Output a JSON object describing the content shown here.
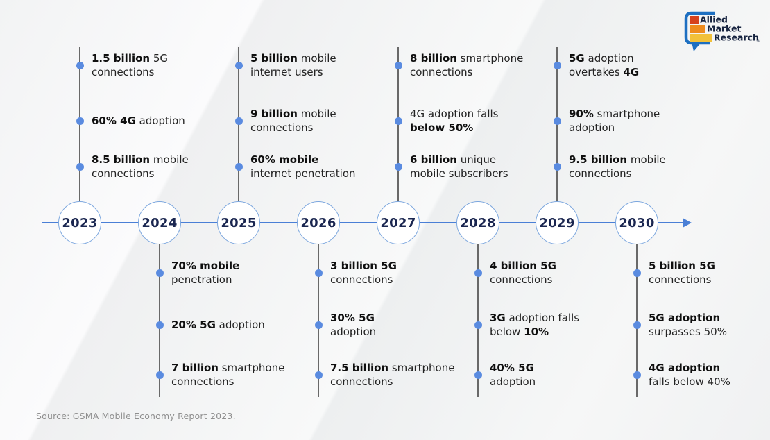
{
  "page": {
    "source_note": "Source: GSMA Mobile Economy Report 2023."
  },
  "logo": {
    "name": "Allied Market Research",
    "lines": [
      "Allied",
      "Market",
      "Research"
    ],
    "registered_mark": "®",
    "colors": {
      "bubble": "#1d6fc1",
      "bar_allied": "#d6411d",
      "bar_market": "#ee8b1e",
      "bar_research": "#f2c13a",
      "text": "#16233f"
    }
  },
  "colors": {
    "axis_blue": "#4a7fd6",
    "dot_blue": "#5a8be0",
    "circle_border_blue": "#7ba6de",
    "year_text_navy": "#1a2650",
    "connector_gray": "#696969",
    "background": "#f1f2f3"
  },
  "timeline": {
    "years": [
      {
        "label": "2023",
        "side": "top",
        "items": [
          [
            [
              {
                "t": "1.5 billion",
                "b": 1
              },
              {
                "t": " 5G",
                "b": 0
              }
            ],
            [
              {
                "t": "connections",
                "b": 0
              }
            ]
          ],
          [
            [
              {
                "t": "60% 4G",
                "b": 1
              },
              {
                "t": " adoption",
                "b": 0
              }
            ]
          ],
          [
            [
              {
                "t": "8.5 billion",
                "b": 1
              },
              {
                "t": " mobile",
                "b": 0
              }
            ],
            [
              {
                "t": "connections",
                "b": 0
              }
            ]
          ]
        ]
      },
      {
        "label": "2024",
        "side": "bottom",
        "items": [
          [
            [
              {
                "t": "70% mobile",
                "b": 1
              }
            ],
            [
              {
                "t": "penetration",
                "b": 0
              }
            ]
          ],
          [
            [
              {
                "t": "20% 5G",
                "b": 1
              },
              {
                "t": " adoption",
                "b": 0
              }
            ]
          ],
          [
            [
              {
                "t": "7 billion",
                "b": 1
              },
              {
                "t": " smartphone",
                "b": 0
              }
            ],
            [
              {
                "t": "connections",
                "b": 0
              }
            ]
          ]
        ]
      },
      {
        "label": "2025",
        "side": "top",
        "items": [
          [
            [
              {
                "t": "5 billion",
                "b": 1
              },
              {
                "t": " mobile",
                "b": 0
              }
            ],
            [
              {
                "t": "internet users",
                "b": 0
              }
            ]
          ],
          [
            [
              {
                "t": "9 billion",
                "b": 1
              },
              {
                "t": " mobile",
                "b": 0
              }
            ],
            [
              {
                "t": "connections",
                "b": 0
              }
            ]
          ],
          [
            [
              {
                "t": "60% mobile",
                "b": 1
              }
            ],
            [
              {
                "t": "internet penetration",
                "b": 0
              }
            ]
          ]
        ]
      },
      {
        "label": "2026",
        "side": "bottom",
        "items": [
          [
            [
              {
                "t": "3 billion 5G",
                "b": 1
              }
            ],
            [
              {
                "t": "connections",
                "b": 0
              }
            ]
          ],
          [
            [
              {
                "t": "30% 5G",
                "b": 1
              }
            ],
            [
              {
                "t": "adoption",
                "b": 0
              }
            ]
          ],
          [
            [
              {
                "t": "7.5 billion",
                "b": 1
              },
              {
                "t": " smartphone",
                "b": 0
              }
            ],
            [
              {
                "t": "connections",
                "b": 0
              }
            ]
          ]
        ]
      },
      {
        "label": "2027",
        "side": "top",
        "items": [
          [
            [
              {
                "t": "8 billion",
                "b": 1
              },
              {
                "t": " smartphone",
                "b": 0
              }
            ],
            [
              {
                "t": "connections",
                "b": 0
              }
            ]
          ],
          [
            [
              {
                "t": "4G adoption falls",
                "b": 0
              }
            ],
            [
              {
                "t": "below 50%",
                "b": 1
              }
            ]
          ],
          [
            [
              {
                "t": "6 billion",
                "b": 1
              },
              {
                "t": " unique",
                "b": 0
              }
            ],
            [
              {
                "t": "mobile subscribers",
                "b": 0
              }
            ]
          ]
        ]
      },
      {
        "label": "2028",
        "side": "bottom",
        "items": [
          [
            [
              {
                "t": "4 billion 5G",
                "b": 1
              }
            ],
            [
              {
                "t": "connections",
                "b": 0
              }
            ]
          ],
          [
            [
              {
                "t": "3G",
                "b": 1
              },
              {
                "t": " adoption falls",
                "b": 0
              }
            ],
            [
              {
                "t": "below ",
                "b": 0
              },
              {
                "t": "10%",
                "b": 1
              }
            ]
          ],
          [
            [
              {
                "t": "40% 5G",
                "b": 1
              }
            ],
            [
              {
                "t": "adoption",
                "b": 0
              }
            ]
          ]
        ]
      },
      {
        "label": "2029",
        "side": "top",
        "items": [
          [
            [
              {
                "t": "5G",
                "b": 1
              },
              {
                "t": " adoption",
                "b": 0
              }
            ],
            [
              {
                "t": "overtakes ",
                "b": 0
              },
              {
                "t": "4G",
                "b": 1
              }
            ]
          ],
          [
            [
              {
                "t": "90%",
                "b": 1
              },
              {
                "t": " smartphone",
                "b": 0
              }
            ],
            [
              {
                "t": "adoption",
                "b": 0
              }
            ]
          ],
          [
            [
              {
                "t": "9.5 billion",
                "b": 1
              },
              {
                "t": " mobile",
                "b": 0
              }
            ],
            [
              {
                "t": "connections",
                "b": 0
              }
            ]
          ]
        ]
      },
      {
        "label": "2030",
        "side": "bottom",
        "items": [
          [
            [
              {
                "t": "5 billion 5G",
                "b": 1
              }
            ],
            [
              {
                "t": "connections",
                "b": 0
              }
            ]
          ],
          [
            [
              {
                "t": "5G adoption",
                "b": 1
              }
            ],
            [
              {
                "t": "surpasses 50%",
                "b": 0
              }
            ]
          ],
          [
            [
              {
                "t": "4G adoption",
                "b": 1
              }
            ],
            [
              {
                "t": "falls below 40%",
                "b": 0
              }
            ]
          ]
        ]
      }
    ]
  }
}
